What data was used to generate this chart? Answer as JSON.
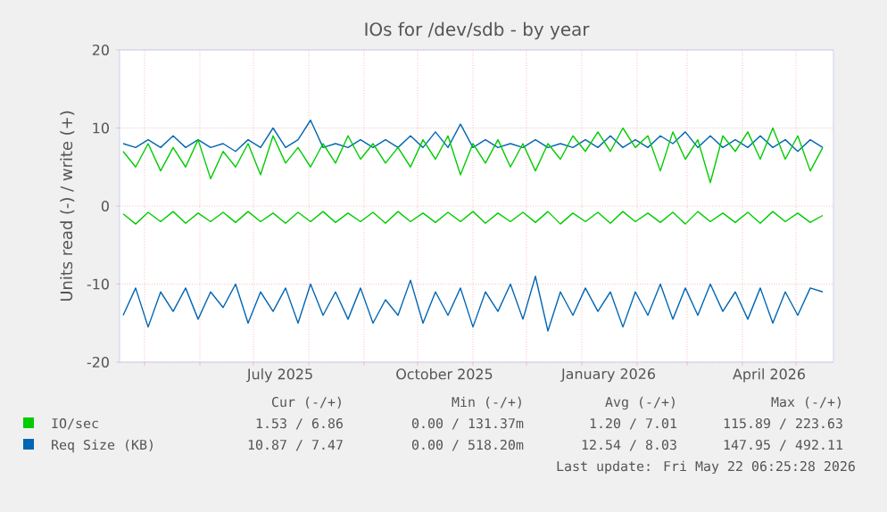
{
  "chart_data": {
    "type": "line",
    "title": "IOs for /dev/sdb - by year",
    "ylabel": "Units read (-) / write (+)",
    "x": [
      "2025-04-19",
      "2025-04-26",
      "2025-05-03",
      "2025-05-10",
      "2025-05-17",
      "2025-05-24",
      "2025-05-31",
      "2025-06-07",
      "2025-06-14",
      "2025-06-21",
      "2025-06-28",
      "2025-07-05",
      "2025-07-12",
      "2025-07-19",
      "2025-07-26",
      "2025-08-02",
      "2025-08-09",
      "2025-08-16",
      "2025-08-23",
      "2025-08-30",
      "2025-09-06",
      "2025-09-13",
      "2025-09-20",
      "2025-09-27",
      "2025-10-04",
      "2025-10-11",
      "2025-10-18",
      "2025-10-25",
      "2025-11-01",
      "2025-11-08",
      "2025-11-15",
      "2025-11-22",
      "2025-11-29",
      "2025-12-06",
      "2025-12-13",
      "2025-12-20",
      "2025-12-27",
      "2026-01-03",
      "2026-01-10",
      "2026-01-17",
      "2026-01-24",
      "2026-01-31",
      "2026-02-07",
      "2026-02-14",
      "2026-02-21",
      "2026-02-28",
      "2026-03-07",
      "2026-03-14",
      "2026-03-21",
      "2026-03-28",
      "2026-04-04",
      "2026-04-11",
      "2026-04-18",
      "2026-04-25",
      "2026-05-02",
      "2026-05-09",
      "2026-05-16"
    ],
    "series": [
      {
        "name": "Req Size (KB)",
        "color": "#0066b3",
        "values": [
          8,
          7.5,
          8.5,
          7.5,
          9,
          7.5,
          8.5,
          7.5,
          8,
          7,
          8.5,
          7.5,
          10,
          7.5,
          8.5,
          11,
          7.5,
          8,
          7.5,
          8.5,
          7.5,
          8.5,
          7.5,
          9,
          7.5,
          9.5,
          7.5,
          10.5,
          7.5,
          8.5,
          7.5,
          8,
          7.5,
          8.5,
          7.5,
          8,
          7.5,
          8.5,
          7.5,
          9,
          7.5,
          8.5,
          7.5,
          9,
          8,
          9.5,
          7.5,
          9,
          7.5,
          8.5,
          7.5,
          9,
          7.5,
          8.5,
          7,
          8.5,
          7.5
        ]
      },
      {
        "color": "#0066b3",
        "values": [
          -14,
          -10.5,
          -15.5,
          -11,
          -13.5,
          -10.5,
          -14.5,
          -11,
          -13,
          -10,
          -15,
          -11,
          -13.5,
          -10.5,
          -15,
          -10,
          -14,
          -11,
          -14.5,
          -10.5,
          -15,
          -12,
          -14,
          -9.5,
          -15,
          -11,
          -14,
          -10.5,
          -15.5,
          -11,
          -13.5,
          -10,
          -14.5,
          -9,
          -16,
          -11,
          -14,
          -10.5,
          -13.5,
          -11,
          -15.5,
          -11,
          -14,
          -10,
          -14.5,
          -10.5,
          -14,
          -10,
          -13.5,
          -11,
          -14.5,
          -10.5,
          -15,
          -11,
          -14,
          -10.5,
          -11
        ]
      },
      {
        "name": "IO/sec",
        "color": "#00cc00",
        "values": [
          7,
          5,
          8,
          4.5,
          7.5,
          5,
          8.5,
          3.5,
          7,
          5,
          8,
          4,
          9,
          5.5,
          7.5,
          5,
          8,
          5.5,
          9,
          6,
          8,
          5.5,
          7.5,
          5,
          8.5,
          6,
          9,
          4,
          8,
          5.5,
          8.5,
          5,
          8,
          4.5,
          8,
          6,
          9,
          7,
          9.5,
          7,
          10,
          7.5,
          9,
          4.5,
          9.5,
          6,
          8.5,
          3,
          9,
          7,
          9.5,
          6,
          10,
          6,
          9,
          4.5,
          7.5
        ]
      },
      {
        "color": "#00cc00",
        "values": [
          -1,
          -2.3,
          -0.8,
          -2,
          -0.7,
          -2.2,
          -0.9,
          -2,
          -0.8,
          -2.1,
          -0.7,
          -2,
          -0.9,
          -2.2,
          -0.8,
          -2,
          -0.7,
          -2.1,
          -0.9,
          -2,
          -0.8,
          -2.2,
          -0.7,
          -2,
          -0.9,
          -2.1,
          -0.8,
          -2,
          -0.7,
          -2.2,
          -0.9,
          -2,
          -0.8,
          -2.1,
          -0.7,
          -2.3,
          -0.9,
          -2,
          -0.8,
          -2.2,
          -0.7,
          -2,
          -0.9,
          -2.1,
          -0.8,
          -2.3,
          -0.7,
          -2,
          -0.9,
          -2.1,
          -0.8,
          -2.2,
          -0.7,
          -2,
          -0.9,
          -2.1,
          -1.2
        ]
      }
    ],
    "xlim": [
      "2025-04-17",
      "2026-05-22"
    ],
    "xticks": [
      {
        "value": "2025-05-01",
        "label": null
      },
      {
        "value": "2025-06-01",
        "label": null
      },
      {
        "value": "2025-07-01",
        "label": null
      },
      {
        "value": "2025-08-01",
        "label": null
      },
      {
        "value": "2025-09-01",
        "label": null
      },
      {
        "value": "2025-10-01",
        "label": null
      },
      {
        "value": "2025-11-01",
        "label": null
      },
      {
        "value": "2025-12-01",
        "label": null
      },
      {
        "value": "2026-01-01",
        "label": null
      },
      {
        "value": "2026-02-01",
        "label": null
      },
      {
        "value": "2026-03-01",
        "label": null
      },
      {
        "value": "2026-04-01",
        "label": null
      },
      {
        "value": "2026-05-01",
        "label": null
      },
      {
        "value": "2025-07-16",
        "label": "July 2025"
      },
      {
        "value": "2025-10-16",
        "label": "October 2025"
      },
      {
        "value": "2026-01-16",
        "label": "January 2026"
      },
      {
        "value": "2026-04-16",
        "label": "April 2026"
      }
    ],
    "ylim": [
      -20,
      20
    ],
    "yticks": [
      -20,
      -10,
      0,
      10,
      20
    ],
    "grid": true,
    "legend": "bottom",
    "line_style": "solid",
    "marker": "none",
    "annotations": [
      "Cur (-/+)",
      "Min (-/+)",
      "Avg (-/+)",
      "Max (-/+)",
      "1.53 / 6.86",
      "0.00 / 131.37m",
      "1.20 / 7.01",
      "115.89 / 223.63",
      "10.87 / 7.47",
      "0.00 / 518.20m",
      "12.54 / 8.03",
      "147.95 / 492.11",
      "Last update: Fri May 22 06:25:28 2026"
    ]
  }
}
